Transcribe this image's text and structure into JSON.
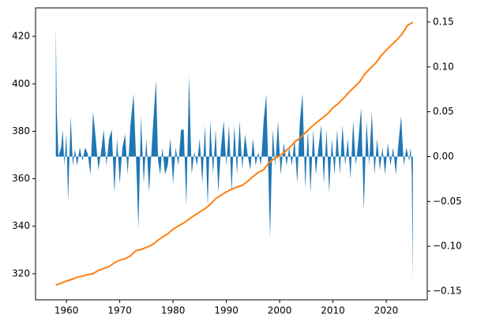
{
  "chart_data": {
    "type": "line",
    "xlim": [
      1954.2,
      2027.7
    ],
    "xticks": [
      1960,
      1970,
      1980,
      1990,
      2000,
      2010,
      2020
    ],
    "ylim": [
      309,
      432
    ],
    "yticks": [
      320,
      340,
      360,
      380,
      400,
      420
    ],
    "y2lim": [
      -0.1597,
      0.1658
    ],
    "y2ticks": [
      {
        "value": -0.15,
        "label": "−0.15"
      },
      {
        "value": -0.1,
        "label": "−0.10"
      },
      {
        "value": -0.05,
        "label": "−0.05"
      },
      {
        "value": 0,
        "label": "0.00"
      },
      {
        "value": 0.05,
        "label": "0.05"
      },
      {
        "value": 0.1,
        "label": "0.10"
      },
      0.15
    ],
    "series": [
      {
        "type": "area",
        "axis": "y2",
        "color": "#1f77b4",
        "x": [
          1958.0,
          1958.2,
          1958.5,
          1959,
          1959.3,
          1959.6,
          1960,
          1960.3,
          1960.8,
          1961.2,
          1961.6,
          1962,
          1962.5,
          1963,
          1963.5,
          1964,
          1964.5,
          1965,
          1965.5,
          1966,
          1966.5,
          1967,
          1967.5,
          1968,
          1968.5,
          1969,
          1969.5,
          1970,
          1970.5,
          1971,
          1971.5,
          1972,
          1972.6,
          1973.2,
          1973.5,
          1974,
          1974.5,
          1975,
          1975.5,
          1976.2,
          1976.8,
          1977.2,
          1977.6,
          1978,
          1978.5,
          1979,
          1979.5,
          1980,
          1980.5,
          1981,
          1981.5,
          1982,
          1982.5,
          1983,
          1983.5,
          1984,
          1984.5,
          1985,
          1985.5,
          1986,
          1986.5,
          1987,
          1987.5,
          1988,
          1988.5,
          1989,
          1989.5,
          1990,
          1990.5,
          1991,
          1991.5,
          1992,
          1992.5,
          1993,
          1993.5,
          1994,
          1994.5,
          1995,
          1995.5,
          1996,
          1996.5,
          1997,
          1997.5,
          1998.2,
          1998.7,
          1999.2,
          1999.7,
          2000.2,
          2000.8,
          2001.3,
          2001.8,
          2002.3,
          2002.8,
          2003.3,
          2003.8,
          2004.3,
          2004.8,
          2005.3,
          2005.8,
          2006.3,
          2006.8,
          2007.3,
          2007.8,
          2008.3,
          2008.8,
          2009.3,
          2009.8,
          2010.3,
          2010.8,
          2011.3,
          2011.8,
          2012.3,
          2012.8,
          2013.3,
          2013.8,
          2014.3,
          2014.8,
          2015.3,
          2015.8,
          2016.3,
          2016.8,
          2017.3,
          2017.8,
          2018.3,
          2018.8,
          2019.3,
          2019.8,
          2020.3,
          2020.8,
          2021.3,
          2021.8,
          2022.3,
          2022.8,
          2023.3,
          2023.8,
          2024.3,
          2024.6,
          2024.8,
          2025.0
        ],
        "values": [
          0.146,
          0.05,
          0.0,
          0.01,
          0.03,
          -0.01,
          0.025,
          -0.05,
          0.045,
          -0.01,
          0.008,
          -0.01,
          0.01,
          -0.005,
          0.01,
          0.003,
          -0.02,
          0.05,
          0.02,
          -0.015,
          0.005,
          0.03,
          -0.01,
          0.02,
          0.03,
          -0.04,
          0.02,
          -0.03,
          0.01,
          0.025,
          -0.02,
          0.035,
          0.07,
          -0.025,
          -0.08,
          0.045,
          -0.03,
          0.02,
          -0.04,
          0.03,
          0.085,
          -0.005,
          -0.02,
          0.01,
          -0.02,
          -0.01,
          0.02,
          -0.03,
          0.01,
          -0.01,
          0.03,
          0.03,
          -0.055,
          0.09,
          -0.02,
          0.005,
          -0.01,
          0.02,
          -0.03,
          0.035,
          -0.055,
          0.04,
          -0.02,
          0.03,
          -0.04,
          0.01,
          0.04,
          -0.01,
          0.035,
          -0.04,
          0.035,
          -0.02,
          0.04,
          -0.015,
          0.025,
          0.002,
          -0.015,
          0.02,
          -0.01,
          0.005,
          -0.01,
          0.04,
          0.07,
          -0.09,
          0.03,
          -0.01,
          0.04,
          -0.02,
          0.015,
          -0.01,
          0.01,
          -0.01,
          0.02,
          -0.03,
          0.04,
          0.07,
          -0.035,
          0.03,
          -0.04,
          0.03,
          -0.02,
          0.01,
          0.035,
          -0.03,
          0.03,
          -0.04,
          0.02,
          -0.02,
          0.03,
          -0.02,
          0.035,
          -0.01,
          0.02,
          -0.025,
          0.04,
          -0.01,
          0.02,
          0.055,
          -0.06,
          0.04,
          -0.01,
          0.05,
          -0.02,
          0.02,
          -0.015,
          0.01,
          -0.02,
          0.015,
          -0.01,
          0.01,
          -0.02,
          0.015,
          0.045,
          -0.01,
          0.01,
          -0.005,
          0.01,
          -0.02,
          -0.14
        ]
      },
      {
        "type": "line",
        "color": "#ff7f0e",
        "x": [
          1958,
          1959,
          1960,
          1961,
          1962,
          1963,
          1964,
          1965,
          1966,
          1967,
          1968,
          1969,
          1970,
          1971,
          1972,
          1973,
          1974,
          1975,
          1976,
          1977,
          1978,
          1979,
          1980,
          1981,
          1982,
          1983,
          1984,
          1985,
          1986,
          1987,
          1988,
          1989,
          1990,
          1991,
          1992,
          1993,
          1994,
          1995,
          1996,
          1997,
          1998,
          1999,
          2000,
          2001,
          2002,
          2003,
          2004,
          2005,
          2006,
          2007,
          2008,
          2009,
          2010,
          2011,
          2012,
          2013,
          2014,
          2015,
          2016,
          2017,
          2018,
          2019,
          2020,
          2021,
          2022,
          2023,
          2024,
          2025
        ],
        "values": [
          315.2,
          316,
          316.9,
          317.6,
          318.5,
          319,
          319.6,
          320,
          321.4,
          322.2,
          323,
          324.6,
          325.7,
          326.3,
          327.5,
          329.7,
          330.2,
          331.1,
          332,
          333.8,
          335.4,
          336.8,
          338.7,
          340.1,
          341.4,
          343,
          344.6,
          346,
          347.4,
          349.2,
          351.6,
          353.1,
          354.4,
          355.6,
          356.5,
          357.2,
          358.9,
          360.9,
          362.7,
          363.8,
          366.8,
          368.5,
          369.7,
          371.3,
          373.5,
          375.8,
          377.5,
          379.8,
          381.9,
          383.8,
          385.6,
          387.4,
          389.9,
          391.7,
          393.9,
          396.5,
          398.6,
          400.8,
          404.2,
          406.5,
          408.7,
          411.7,
          414.2,
          416.4,
          418.5,
          421.1,
          424.6,
          426
        ]
      }
    ]
  }
}
